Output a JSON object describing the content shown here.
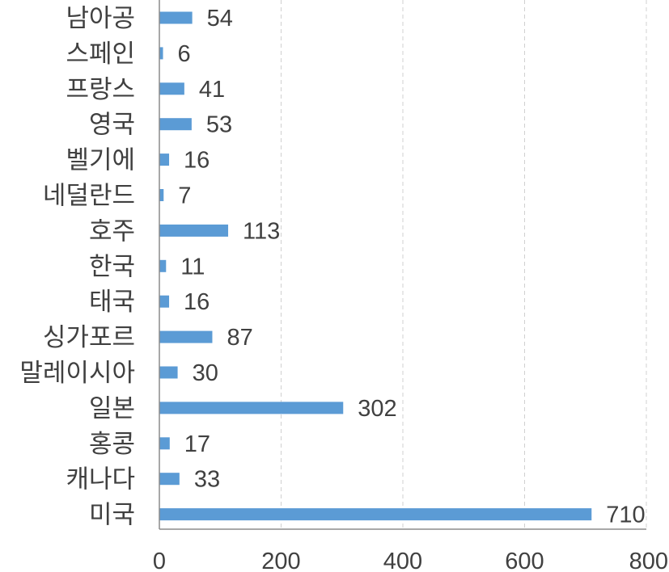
{
  "chart_data": {
    "type": "bar",
    "orientation": "horizontal",
    "title": "",
    "xlabel": "",
    "ylabel": "",
    "categories": [
      "남아공",
      "스페인",
      "프랑스",
      "영국",
      "벨기에",
      "네덜란드",
      "호주",
      "한국",
      "태국",
      "싱가포르",
      "말레이시아",
      "일본",
      "홍콩",
      "캐나다",
      "미국"
    ],
    "values": [
      54,
      6,
      41,
      53,
      16,
      7,
      113,
      11,
      16,
      87,
      30,
      302,
      17,
      33,
      710
    ],
    "xlim": [
      0,
      800
    ],
    "xticks": [
      0,
      200,
      400,
      600,
      800
    ],
    "grid": "vertical dashed",
    "legend": "none",
    "data_labels": true,
    "bar_color": "#5b9bd5"
  }
}
